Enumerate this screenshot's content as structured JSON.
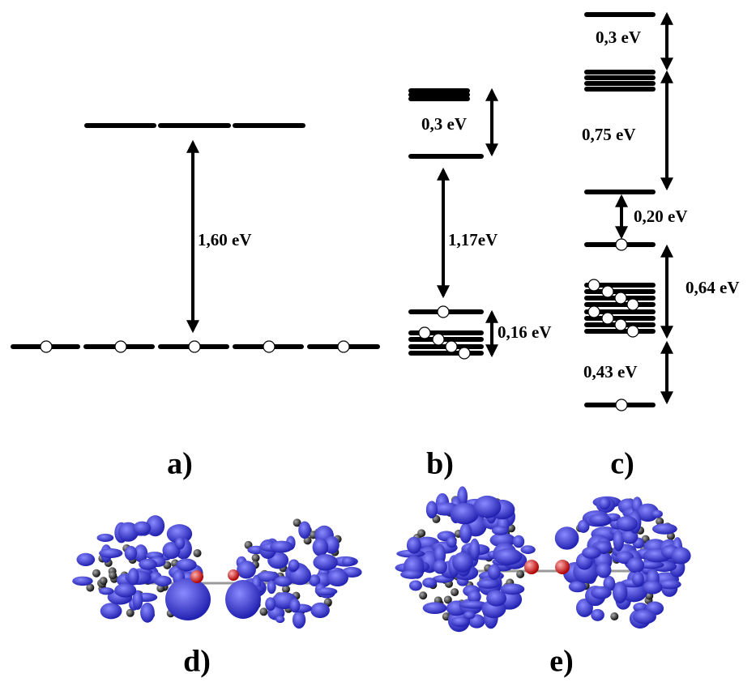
{
  "panels": [
    {
      "label": "a)",
      "gaps": [
        "1,60 eV"
      ]
    },
    {
      "label": "b)",
      "gaps": [
        "0,3 eV",
        "1,17eV",
        "0,16 eV"
      ]
    },
    {
      "label": "c)",
      "gaps": [
        "0,3 eV",
        "0,75 eV",
        "0,20 eV",
        "0,64 eV",
        "0,43 eV"
      ]
    },
    {
      "label": "d)"
    },
    {
      "label": "e)"
    }
  ]
}
